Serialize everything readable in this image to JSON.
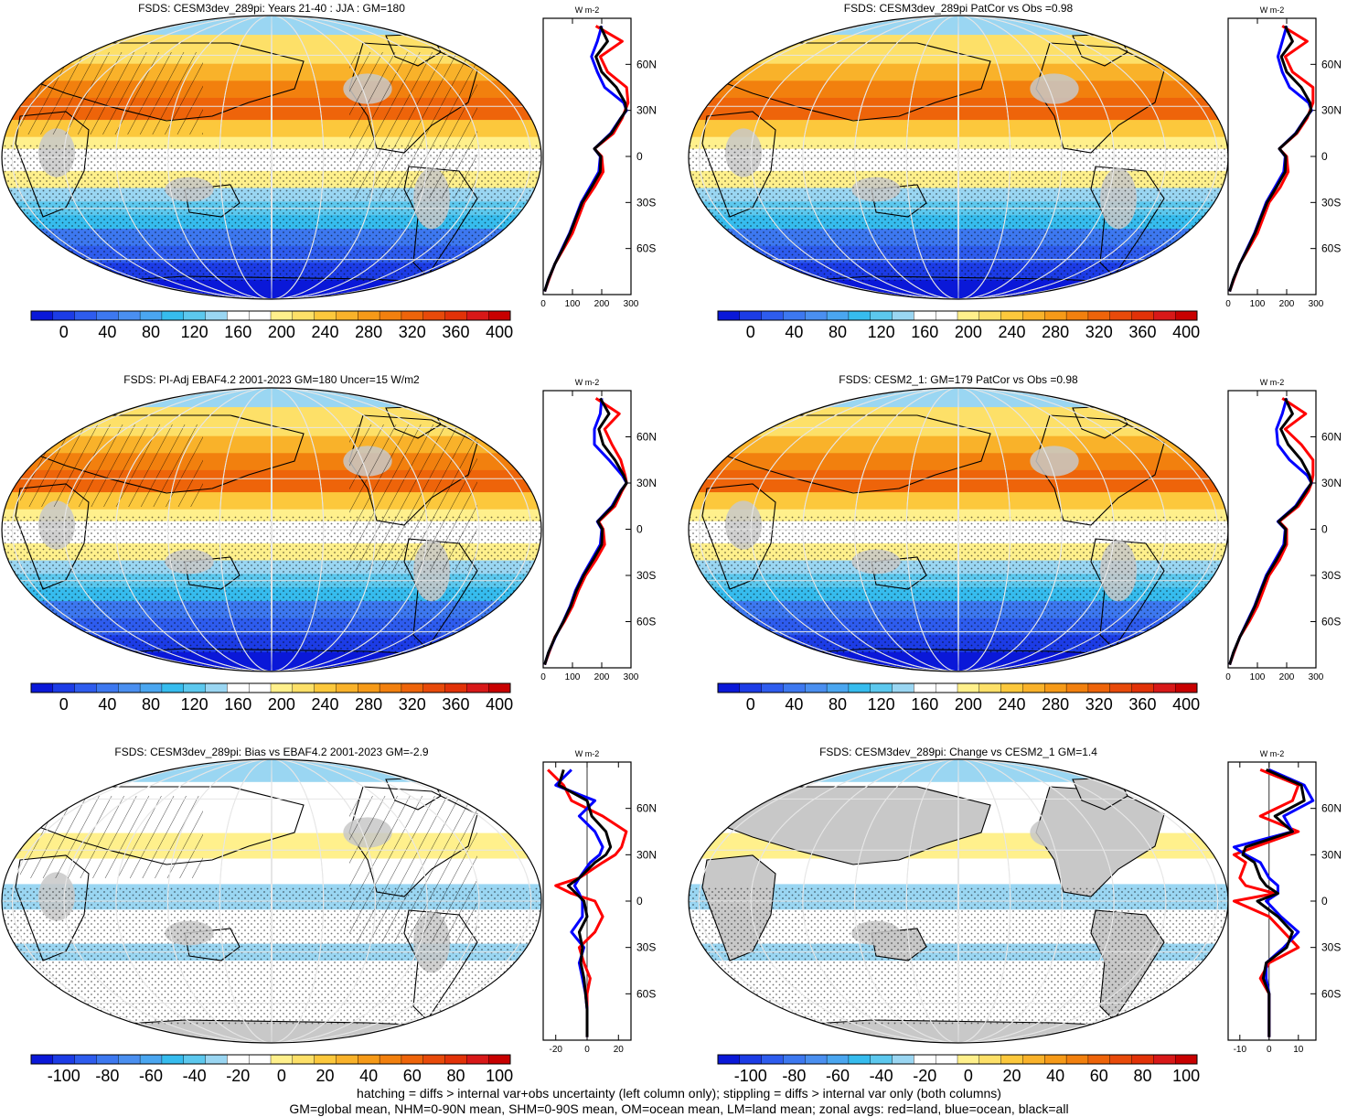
{
  "colors": {
    "land": "#c8c8c8",
    "zonal_land": "#ff0000",
    "zonal_ocean": "#0000ff",
    "zonal_all": "#000000",
    "abs_scale": [
      "#0a18d8",
      "#1c3ce6",
      "#2e5cee",
      "#3d78f0",
      "#4a8ff0",
      "#4aa6f0",
      "#36bcee",
      "#5cc8ee",
      "#9ad6f2",
      "#ffffff",
      "#ffffff",
      "#fff08c",
      "#fde068",
      "#fcc83c",
      "#f9b22a",
      "#f69a18",
      "#f2800e",
      "#ee640a",
      "#e84a0a",
      "#e23208",
      "#d81818",
      "#c80000"
    ],
    "diff_scale": [
      "#0a18d8",
      "#1c3ce6",
      "#2e5cee",
      "#3d78f0",
      "#4a8ff0",
      "#4aa6f0",
      "#36bcee",
      "#5cc8ee",
      "#9ad6f2",
      "#ffffff",
      "#ffffff",
      "#fff08c",
      "#fde068",
      "#fcc83c",
      "#f9b22a",
      "#f69a18",
      "#f2800e",
      "#ee640a",
      "#e84a0a",
      "#e23208",
      "#d81818",
      "#c80000"
    ]
  },
  "panels": [
    {
      "title": "FSDS: CESM3dev_289pi: Years 21-40 : JJA : GM=180",
      "kind": "abs",
      "hatching": true,
      "colorbar_labels": [
        "0",
        "40",
        "80",
        "120",
        "160",
        "200",
        "240",
        "280",
        "320",
        "360",
        "400"
      ],
      "zonal": {
        "unit": "W m-2",
        "xlim": [
          0,
          300
        ],
        "xticks": [
          "0",
          "100",
          "200",
          "300"
        ],
        "lat_labels": [
          "60N",
          "30N",
          "0",
          "30S",
          "60S"
        ]
      }
    },
    {
      "title": "FSDS: CESM3dev_289pi PatCor vs Obs =0.98",
      "kind": "abs",
      "hatching": false,
      "colorbar_labels": [
        "0",
        "40",
        "80",
        "120",
        "160",
        "200",
        "240",
        "280",
        "320",
        "360",
        "400"
      ],
      "zonal": {
        "unit": "W m-2",
        "xlim": [
          0,
          300
        ],
        "xticks": [
          "0",
          "100",
          "200",
          "300"
        ],
        "lat_labels": [
          "60N",
          "30N",
          "0",
          "30S",
          "60S"
        ]
      }
    },
    {
      "title": "FSDS: PI-Adj EBAF4.2 2001-2023 GM=180 Uncer=15 W/m2",
      "kind": "abs",
      "hatching": true,
      "colorbar_labels": [
        "0",
        "40",
        "80",
        "120",
        "160",
        "200",
        "240",
        "280",
        "320",
        "360",
        "400"
      ],
      "zonal": {
        "unit": "W m-2",
        "xlim": [
          0,
          300
        ],
        "xticks": [
          "0",
          "100",
          "200",
          "300"
        ],
        "lat_labels": [
          "60N",
          "30N",
          "0",
          "30S",
          "60S"
        ]
      }
    },
    {
      "title": "FSDS: CESM2_1: GM=179 PatCor vs Obs =0.98",
      "kind": "abs",
      "hatching": false,
      "colorbar_labels": [
        "0",
        "40",
        "80",
        "120",
        "160",
        "200",
        "240",
        "280",
        "320",
        "360",
        "400"
      ],
      "zonal": {
        "unit": "W m-2",
        "xlim": [
          0,
          300
        ],
        "xticks": [
          "0",
          "100",
          "200",
          "300"
        ],
        "lat_labels": [
          "60N",
          "30N",
          "0",
          "30S",
          "60S"
        ]
      }
    },
    {
      "title": "FSDS: CESM3dev_289pi: Bias vs EBAF4.2 2001-2023 GM=-2.9",
      "kind": "diff",
      "hatching": true,
      "colorbar_labels": [
        "-100",
        "-80",
        "-60",
        "-40",
        "-20",
        "0",
        "20",
        "40",
        "60",
        "80",
        "100"
      ],
      "zonal": {
        "unit": "W m-2",
        "xlim": [
          -28,
          28
        ],
        "xticks": [
          "-20",
          "0",
          "20"
        ],
        "lat_labels": [
          "60N",
          "30N",
          "0",
          "30S",
          "60S"
        ]
      }
    },
    {
      "title": "FSDS: CESM3dev_289pi: Change vs CESM2_1 GM=1.4",
      "kind": "diff",
      "hatching": false,
      "colorbar_labels": [
        "-100",
        "-80",
        "-60",
        "-40",
        "-20",
        "0",
        "20",
        "40",
        "60",
        "80",
        "100"
      ],
      "zonal": {
        "unit": "W m-2",
        "xlim": [
          -14,
          16
        ],
        "xticks": [
          "-10",
          "0",
          "10"
        ],
        "lat_labels": [
          "60N",
          "30N",
          "0",
          "30S",
          "60S"
        ]
      }
    }
  ],
  "chart_data": [
    {
      "type": "line",
      "title": "FSDS: CESM3dev_289pi: Years 21-40 : JJA : GM=180",
      "xlabel": "W m-2",
      "xlim": [
        0,
        300
      ],
      "lat": [
        85,
        75,
        65,
        55,
        45,
        35,
        30,
        25,
        15,
        5,
        0,
        -10,
        -20,
        -30,
        -40,
        -50,
        -60,
        -70,
        -80,
        -88
      ],
      "series": [
        {
          "name": "land",
          "values": [
            180,
            270,
            195,
            220,
            285,
            290,
            280,
            270,
            240,
            175,
            200,
            205,
            175,
            140,
            120,
            100,
            70,
            40,
            20,
            5
          ]
        },
        {
          "name": "ocean",
          "values": [
            200,
            185,
            165,
            185,
            210,
            275,
            285,
            265,
            230,
            175,
            195,
            190,
            160,
            130,
            110,
            90,
            65,
            40,
            18,
            5
          ]
        },
        {
          "name": "all",
          "values": [
            195,
            220,
            180,
            200,
            250,
            280,
            283,
            266,
            233,
            175,
            197,
            195,
            165,
            133,
            112,
            92,
            67,
            40,
            18,
            5
          ]
        }
      ]
    },
    {
      "type": "line",
      "title": "FSDS: CESM3dev_289pi PatCor vs Obs =0.98",
      "xlabel": "W m-2",
      "xlim": [
        0,
        300
      ],
      "lat": [
        85,
        75,
        65,
        55,
        45,
        35,
        30,
        25,
        15,
        5,
        0,
        -10,
        -20,
        -30,
        -40,
        -50,
        -60,
        -70,
        -80,
        -88
      ],
      "series": [
        {
          "name": "land",
          "values": [
            185,
            270,
            195,
            220,
            290,
            290,
            280,
            270,
            235,
            175,
            200,
            205,
            178,
            140,
            120,
            100,
            70,
            40,
            20,
            5
          ]
        },
        {
          "name": "ocean",
          "values": [
            200,
            185,
            170,
            185,
            210,
            275,
            285,
            265,
            230,
            175,
            195,
            190,
            160,
            130,
            110,
            90,
            65,
            40,
            18,
            5
          ]
        },
        {
          "name": "all",
          "values": [
            195,
            220,
            182,
            200,
            250,
            280,
            283,
            266,
            232,
            175,
            197,
            195,
            165,
            133,
            112,
            92,
            67,
            40,
            18,
            5
          ]
        }
      ]
    },
    {
      "type": "line",
      "title": "FSDS: PI-Adj EBAF4.2 2001-2023 GM=180 Uncer=15 W/m2",
      "xlabel": "W m-2",
      "xlim": [
        0,
        300
      ],
      "lat": [
        85,
        75,
        65,
        55,
        45,
        35,
        30,
        25,
        15,
        5,
        0,
        -10,
        -20,
        -30,
        -40,
        -50,
        -60,
        -70,
        -80,
        -88
      ],
      "series": [
        {
          "name": "land",
          "values": [
            180,
            260,
            210,
            235,
            265,
            280,
            285,
            270,
            245,
            190,
            205,
            210,
            180,
            145,
            120,
            100,
            72,
            40,
            20,
            5
          ]
        },
        {
          "name": "ocean",
          "values": [
            200,
            195,
            175,
            175,
            225,
            270,
            285,
            265,
            235,
            185,
            200,
            195,
            165,
            135,
            110,
            92,
            68,
            42,
            18,
            5
          ]
        },
        {
          "name": "all",
          "values": [
            195,
            225,
            190,
            205,
            245,
            275,
            285,
            267,
            238,
            187,
            202,
            200,
            170,
            138,
            113,
            94,
            69,
            41,
            18,
            5
          ]
        }
      ]
    },
    {
      "type": "line",
      "title": "FSDS: CESM2_1: GM=179 PatCor vs Obs =0.98",
      "xlabel": "W m-2",
      "xlim": [
        0,
        300
      ],
      "lat": [
        85,
        75,
        65,
        55,
        45,
        35,
        30,
        25,
        15,
        5,
        0,
        -10,
        -20,
        -30,
        -40,
        -50,
        -60,
        -70,
        -80,
        -88
      ],
      "series": [
        {
          "name": "land",
          "values": [
            185,
            265,
            195,
            250,
            290,
            290,
            285,
            275,
            240,
            175,
            200,
            200,
            175,
            140,
            120,
            100,
            72,
            40,
            20,
            5
          ]
        },
        {
          "name": "ocean",
          "values": [
            200,
            185,
            165,
            170,
            210,
            270,
            285,
            265,
            230,
            170,
            195,
            190,
            160,
            130,
            110,
            90,
            65,
            40,
            18,
            5
          ]
        },
        {
          "name": "all",
          "values": [
            195,
            220,
            180,
            205,
            250,
            278,
            284,
            268,
            233,
            172,
            197,
            194,
            165,
            133,
            112,
            92,
            67,
            40,
            18,
            5
          ]
        }
      ]
    },
    {
      "type": "line",
      "title": "FSDS: CESM3dev_289pi: Bias vs EBAF4.2 2001-2023 GM=-2.9",
      "xlabel": "W m-2",
      "xlim": [
        -28,
        28
      ],
      "lat": [
        85,
        75,
        65,
        55,
        45,
        35,
        30,
        25,
        15,
        10,
        5,
        0,
        -10,
        -20,
        -30,
        -40,
        -50,
        -60,
        -70,
        -80,
        -88
      ],
      "series": [
        {
          "name": "land",
          "values": [
            -25,
            -15,
            -10,
            10,
            25,
            22,
            18,
            10,
            -5,
            -20,
            -10,
            5,
            10,
            5,
            -5,
            -2,
            2,
            0,
            0,
            0,
            0
          ]
        },
        {
          "name": "ocean",
          "values": [
            -10,
            -20,
            5,
            -5,
            5,
            10,
            8,
            2,
            -5,
            -8,
            -5,
            -3,
            -3,
            -10,
            -2,
            -5,
            -3,
            -1,
            0,
            0,
            0
          ]
        },
        {
          "name": "all",
          "values": [
            -15,
            -18,
            0,
            3,
            12,
            15,
            12,
            5,
            -5,
            -12,
            -7,
            -2,
            0,
            -5,
            -3,
            -4,
            -2,
            -1,
            0,
            0,
            0
          ]
        }
      ]
    },
    {
      "type": "line",
      "title": "FSDS: CESM3dev_289pi: Change vs CESM2_1 GM=1.4",
      "xlabel": "W m-2",
      "xlim": [
        -14,
        16
      ],
      "lat": [
        85,
        75,
        65,
        55,
        45,
        35,
        30,
        25,
        15,
        10,
        5,
        0,
        -10,
        -20,
        -30,
        -40,
        -50,
        -60,
        -70,
        -80,
        -88
      ],
      "series": [
        {
          "name": "land",
          "values": [
            -3,
            10,
            8,
            -3,
            10,
            -5,
            -12,
            -8,
            -10,
            -8,
            2,
            -12,
            0,
            5,
            10,
            0,
            -3,
            0,
            0,
            0,
            0
          ]
        },
        {
          "name": "ocean",
          "values": [
            0,
            12,
            15,
            5,
            8,
            -12,
            -8,
            -3,
            0,
            3,
            3,
            -1,
            4,
            10,
            5,
            -1,
            -1,
            0,
            0,
            0,
            0
          ]
        },
        {
          "name": "all",
          "values": [
            -1,
            11,
            12,
            2,
            8,
            -8,
            -9,
            -5,
            -3,
            -1,
            3,
            -4,
            3,
            8,
            6,
            -1,
            -2,
            0,
            0,
            0,
            0
          ]
        }
      ]
    }
  ],
  "footer": {
    "line1": "hatching = diffs > internal var+obs uncertainty (left column only); stippling = diffs > internal var only (both columns)",
    "line2": "GM=global mean, NHM=0-90N mean, SHM=0-90S mean, OM=ocean mean, LM=land mean; zonal avgs: red=land, blue=ocean, black=all"
  }
}
